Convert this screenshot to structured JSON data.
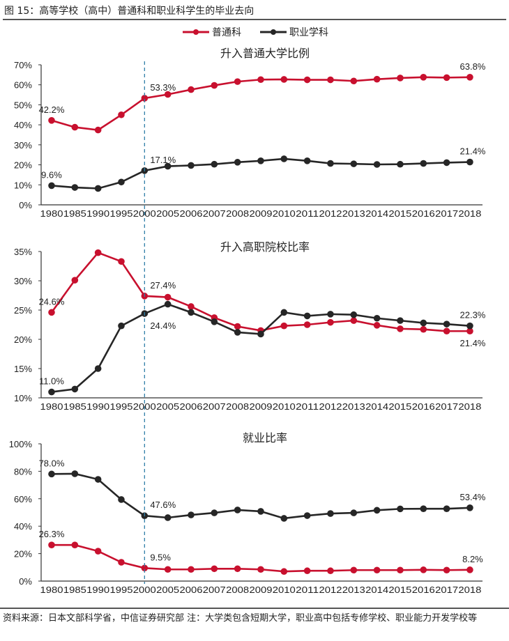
{
  "figure_title": "图 15：高等学校（高中）普通科和职业科学生的毕业去向",
  "footer": "资料来源：日本文部科学省，中信证券研究部 注：大学类包含短期大学，职业高中包括专修学校、职业能力开发学校等",
  "legend": [
    {
      "name": "普通科",
      "color": "#c8102e"
    },
    {
      "name": "职业学科",
      "color": "#262626"
    }
  ],
  "reference_line": {
    "category": "2000",
    "color": "#2f7fa8",
    "style": "dashed"
  },
  "chart_data": [
    {
      "type": "line",
      "title": "升入普通大学比例",
      "categories": [
        "1980",
        "1985",
        "1990",
        "1995",
        "2000",
        "2005",
        "2006",
        "2007",
        "2008",
        "2009",
        "2010",
        "2011",
        "2012",
        "2013",
        "2014",
        "2015",
        "2016",
        "2017",
        "2018"
      ],
      "yticks": [
        "0%",
        "10%",
        "20%",
        "30%",
        "40%",
        "50%",
        "60%",
        "70%"
      ],
      "ylim": [
        0,
        70
      ],
      "grid": false,
      "legend_position": "top-center",
      "series": [
        {
          "name": "普通科",
          "color": "#c8102e",
          "values": [
            42.2,
            38.8,
            37.4,
            45.0,
            53.3,
            55.2,
            57.6,
            59.7,
            61.6,
            62.6,
            62.7,
            62.5,
            62.5,
            61.9,
            62.8,
            63.4,
            63.8,
            63.6,
            63.8
          ]
        },
        {
          "name": "职业学科",
          "color": "#262626",
          "values": [
            9.6,
            8.7,
            8.2,
            11.4,
            17.1,
            19.3,
            19.7,
            20.3,
            21.3,
            22.0,
            23.0,
            22.0,
            20.7,
            20.5,
            20.2,
            20.3,
            20.7,
            21.1,
            21.4
          ]
        }
      ],
      "annotations": [
        {
          "series": 0,
          "index": 0,
          "text": "42.2%",
          "pos": "above"
        },
        {
          "series": 0,
          "index": 4,
          "text": "53.3%",
          "pos": "above-right"
        },
        {
          "series": 0,
          "index": 18,
          "text": "63.8%",
          "pos": "above"
        },
        {
          "series": 1,
          "index": 0,
          "text": "9.6%",
          "pos": "above"
        },
        {
          "series": 1,
          "index": 4,
          "text": "17.1%",
          "pos": "above-right"
        },
        {
          "series": 1,
          "index": 18,
          "text": "21.4%",
          "pos": "above"
        }
      ]
    },
    {
      "type": "line",
      "title": "升入高职院校比率",
      "categories": [
        "1980",
        "1985",
        "1990",
        "1995",
        "2000",
        "2005",
        "2006",
        "2007",
        "2008",
        "2009",
        "2010",
        "2011",
        "2012",
        "2013",
        "2014",
        "2015",
        "2016",
        "2017",
        "2018"
      ],
      "yticks": [
        "10%",
        "15%",
        "20%",
        "25%",
        "30%",
        "35%"
      ],
      "ylim": [
        10,
        35
      ],
      "grid": false,
      "series": [
        {
          "name": "普通科",
          "color": "#c8102e",
          "values": [
            24.6,
            30.1,
            34.8,
            33.3,
            27.4,
            27.2,
            25.6,
            23.7,
            22.2,
            21.5,
            22.3,
            22.5,
            22.9,
            23.2,
            22.4,
            21.8,
            21.7,
            21.4,
            21.4
          ]
        },
        {
          "name": "职业学科",
          "color": "#262626",
          "values": [
            11.0,
            11.5,
            15.0,
            22.3,
            24.4,
            26.0,
            24.6,
            23.0,
            21.2,
            20.9,
            24.6,
            24.0,
            24.3,
            24.2,
            23.6,
            23.2,
            22.8,
            22.6,
            22.3
          ]
        }
      ],
      "annotations": [
        {
          "series": 0,
          "index": 0,
          "text": "24.6%",
          "pos": "above"
        },
        {
          "series": 0,
          "index": 4,
          "text": "27.4%",
          "pos": "above-right"
        },
        {
          "series": 0,
          "index": 18,
          "text": "21.4%",
          "pos": "below"
        },
        {
          "series": 1,
          "index": 0,
          "text": "11.0%",
          "pos": "above"
        },
        {
          "series": 1,
          "index": 4,
          "text": "24.4%",
          "pos": "below-right"
        },
        {
          "series": 1,
          "index": 18,
          "text": "22.3%",
          "pos": "above"
        }
      ]
    },
    {
      "type": "line",
      "title": "就业比率",
      "categories": [
        "1980",
        "1985",
        "1990",
        "1995",
        "2000",
        "2005",
        "2006",
        "2007",
        "2008",
        "2009",
        "2010",
        "2011",
        "2012",
        "2013",
        "2014",
        "2015",
        "2016",
        "2017",
        "2018"
      ],
      "yticks": [
        "0%",
        "20%",
        "40%",
        "60%",
        "80%",
        "100%"
      ],
      "ylim": [
        0,
        100
      ],
      "grid": false,
      "series": [
        {
          "name": "普通科",
          "color": "#c8102e",
          "values": [
            26.3,
            26.3,
            21.8,
            13.7,
            9.5,
            8.5,
            8.5,
            9.0,
            9.0,
            8.5,
            7.0,
            7.5,
            7.5,
            8.0,
            8.0,
            8.0,
            8.2,
            8.0,
            8.2
          ]
        },
        {
          "name": "职业学科",
          "color": "#262626",
          "values": [
            78.0,
            78.2,
            74.1,
            59.4,
            47.6,
            46.2,
            48.2,
            49.7,
            51.8,
            50.8,
            45.7,
            47.7,
            49.2,
            49.7,
            51.6,
            52.6,
            52.7,
            52.7,
            53.4
          ]
        }
      ],
      "annotations": [
        {
          "series": 0,
          "index": 0,
          "text": "26.3%",
          "pos": "above"
        },
        {
          "series": 0,
          "index": 4,
          "text": "9.5%",
          "pos": "above-right"
        },
        {
          "series": 0,
          "index": 18,
          "text": "8.2%",
          "pos": "above"
        },
        {
          "series": 1,
          "index": 0,
          "text": "78.0%",
          "pos": "above"
        },
        {
          "series": 1,
          "index": 4,
          "text": "47.6%",
          "pos": "above-right"
        },
        {
          "series": 1,
          "index": 18,
          "text": "53.4%",
          "pos": "above"
        }
      ]
    }
  ]
}
